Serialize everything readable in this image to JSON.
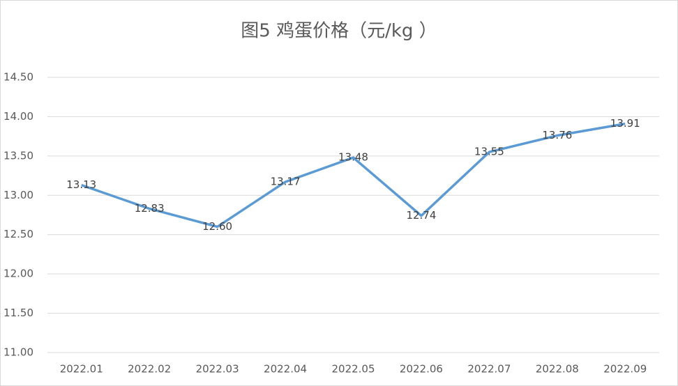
{
  "chart_data": {
    "type": "line",
    "title": "图5  鸡蛋价格（元/kg ）",
    "categories": [
      "2022.01",
      "2022.02",
      "2022.03",
      "2022.04",
      "2022.05",
      "2022.06",
      "2022.07",
      "2022.08",
      "2022.09"
    ],
    "values": [
      13.13,
      12.83,
      12.6,
      13.17,
      13.48,
      12.74,
      13.55,
      13.76,
      13.91
    ],
    "value_labels": [
      "13.13",
      "12.83",
      "12.60",
      "13.17",
      "13.48",
      "12.74",
      "13.55",
      "13.76",
      "13.91"
    ],
    "color": "#5b9bd5",
    "ylim": [
      11,
      14.5
    ],
    "yticks": [
      {
        "value": 11,
        "label": "11.00"
      },
      {
        "value": 11.5,
        "label": "11.50"
      },
      {
        "value": 12,
        "label": "12.00"
      },
      {
        "value": 12.5,
        "label": "12.50"
      },
      {
        "value": 13,
        "label": "13.00"
      },
      {
        "value": 13.5,
        "label": "13.50"
      },
      {
        "value": 14,
        "label": "14.00"
      },
      {
        "value": 14.5,
        "label": "14.50"
      }
    ],
    "grid": true
  }
}
